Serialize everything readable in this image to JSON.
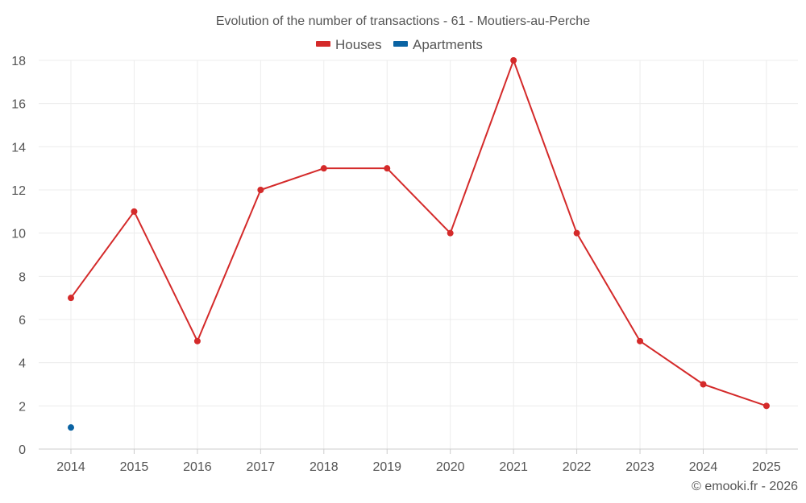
{
  "chart_data": {
    "type": "line",
    "title": "Evolution of the number of transactions - 61 - Moutiers-au-Perche",
    "categories": [
      "2014",
      "2015",
      "2016",
      "2017",
      "2018",
      "2019",
      "2020",
      "2021",
      "2022",
      "2023",
      "2024",
      "2025"
    ],
    "series": [
      {
        "name": "Houses",
        "color": "#d42a2a",
        "values": [
          7,
          11,
          5,
          12,
          13,
          13,
          10,
          18,
          10,
          5,
          3,
          2
        ]
      },
      {
        "name": "Apartments",
        "color": "#0a63a3",
        "values": [
          1,
          null,
          null,
          null,
          null,
          null,
          null,
          null,
          null,
          null,
          null,
          null
        ]
      }
    ],
    "ylim": [
      0,
      18
    ],
    "yticks": [
      0,
      2,
      4,
      6,
      8,
      10,
      12,
      14,
      16,
      18
    ],
    "xlabel": "",
    "ylabel": "",
    "grid": true,
    "legend_position": "top-center"
  },
  "credit": "© emooki.fr - 2026"
}
